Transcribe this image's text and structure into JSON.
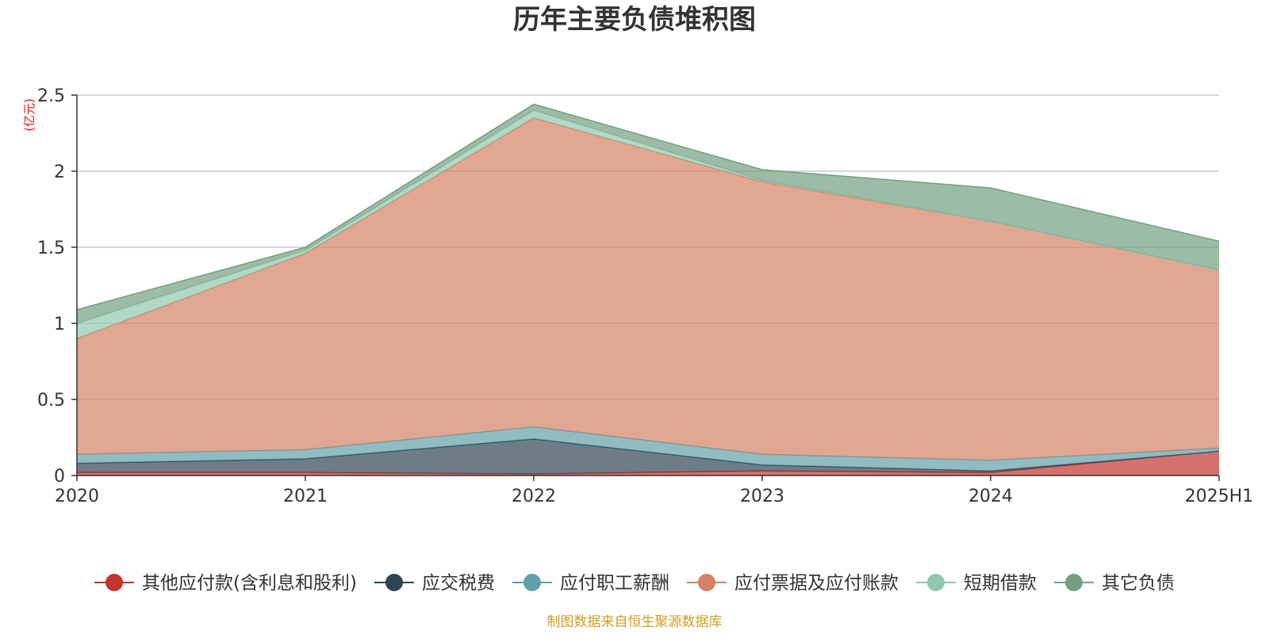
{
  "chart_data": {
    "type": "area",
    "stacked": true,
    "title": "历年主要负债堆积图",
    "unit_label": "(亿元)",
    "categories": [
      "2020",
      "2021",
      "2022",
      "2023",
      "2024",
      "2025H1"
    ],
    "ylim": [
      0,
      2.5
    ],
    "yticks": [
      "0",
      "0.5",
      "1",
      "1.5",
      "2",
      "2.5"
    ],
    "grid": true,
    "legend_position": "bottom",
    "series": [
      {
        "name": "其他应付款(含利息和股利)",
        "color": "#c23531",
        "values": [
          0.02,
          0.02,
          0.01,
          0.03,
          0.02,
          0.16
        ]
      },
      {
        "name": "应交税费",
        "color": "#2f4554",
        "values": [
          0.06,
          0.09,
          0.23,
          0.04,
          0.01,
          0.0
        ]
      },
      {
        "name": "应付职工薪酬",
        "color": "#61a0a8",
        "values": [
          0.06,
          0.06,
          0.08,
          0.07,
          0.07,
          0.02
        ]
      },
      {
        "name": "应付票据及应付账款",
        "color": "#d48265",
        "values": [
          0.76,
          1.29,
          2.03,
          1.79,
          1.57,
          1.17
        ]
      },
      {
        "name": "短期借款",
        "color": "#91c7ae",
        "values": [
          0.1,
          0.02,
          0.05,
          0.01,
          0.0,
          0.0
        ]
      },
      {
        "name": "其它负债",
        "color": "#749f83",
        "values": [
          0.09,
          0.02,
          0.04,
          0.07,
          0.22,
          0.19
        ]
      }
    ],
    "source": "制图数据来自恒生聚源数据库"
  }
}
